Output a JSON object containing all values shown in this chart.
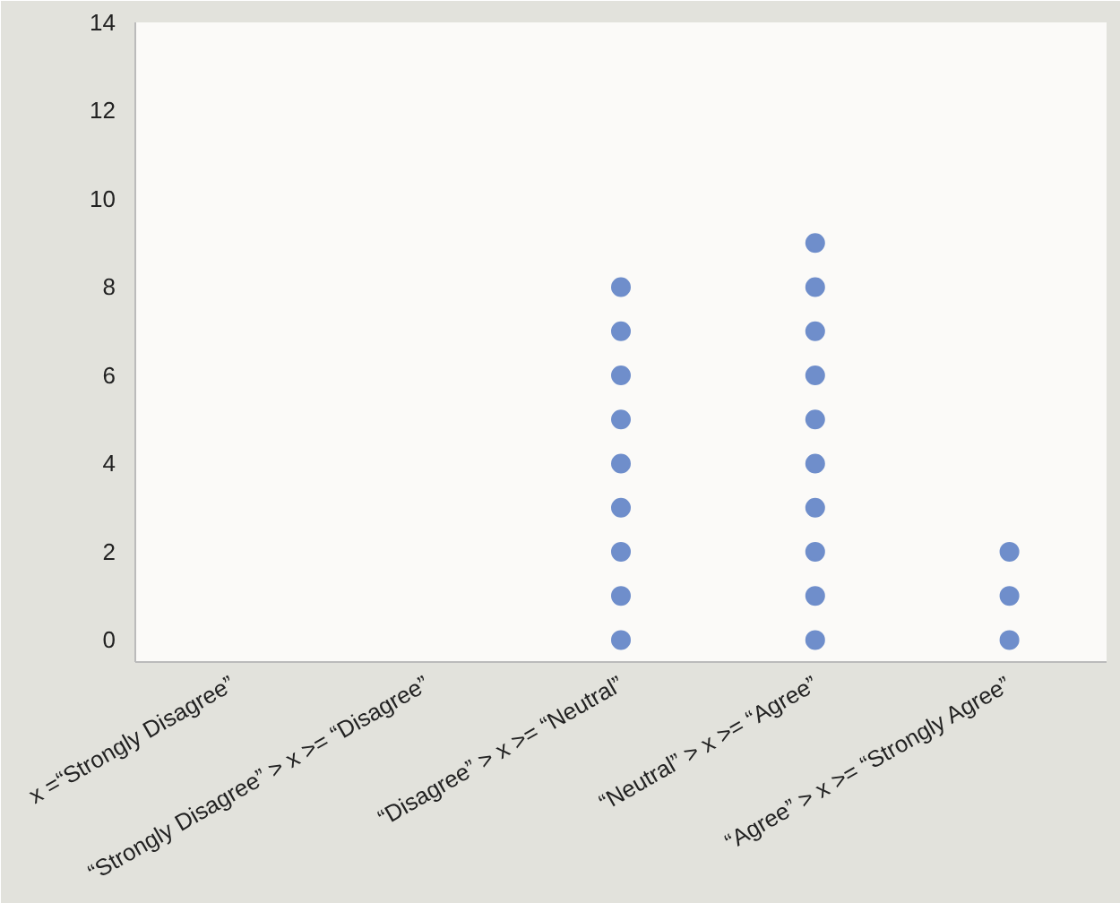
{
  "chart_data": {
    "type": "scatter",
    "categories": [
      "x =“Strongly Disagree”",
      "“Strongly Disagree” > x >= “Disagree”",
      "“Disagree” > x >= “Neutral”",
      "“Neutral” > x >= “Agree”",
      "“Agree” > x >= “Strongly Agree”"
    ],
    "series": [
      {
        "color": "#6f8ecb",
        "x": [
          "“Disagree” > x >= “Neutral”",
          "“Disagree” > x >= “Neutral”",
          "“Disagree” > x >= “Neutral”",
          "“Disagree” > x >= “Neutral”",
          "“Disagree” > x >= “Neutral”",
          "“Disagree” > x >= “Neutral”",
          "“Disagree” > x >= “Neutral”",
          "“Disagree” > x >= “Neutral”",
          "“Disagree” > x >= “Neutral”",
          "“Neutral” > x >= “Agree”",
          "“Neutral” > x >= “Agree”",
          "“Neutral” > x >= “Agree”",
          "“Neutral” > x >= “Agree”",
          "“Neutral” > x >= “Agree”",
          "“Neutral” > x >= “Agree”",
          "“Neutral” > x >= “Agree”",
          "“Neutral” > x >= “Agree”",
          "“Neutral” > x >= “Agree”",
          "“Neutral” > x >= “Agree”",
          "“Agree” > x >= “Strongly Agree”",
          "“Agree” > x >= “Strongly Agree”",
          "“Agree” > x >= “Strongly Agree”"
        ],
        "values": [
          0,
          1,
          2,
          3,
          4,
          5,
          6,
          7,
          8,
          0,
          1,
          2,
          3,
          4,
          5,
          6,
          7,
          8,
          9,
          0,
          1,
          2
        ]
      }
    ],
    "ylim": [
      -0.5,
      14
    ],
    "yticks": [
      0,
      2,
      4,
      6,
      8,
      10,
      12,
      14
    ],
    "grid": false,
    "marker": "circle"
  }
}
